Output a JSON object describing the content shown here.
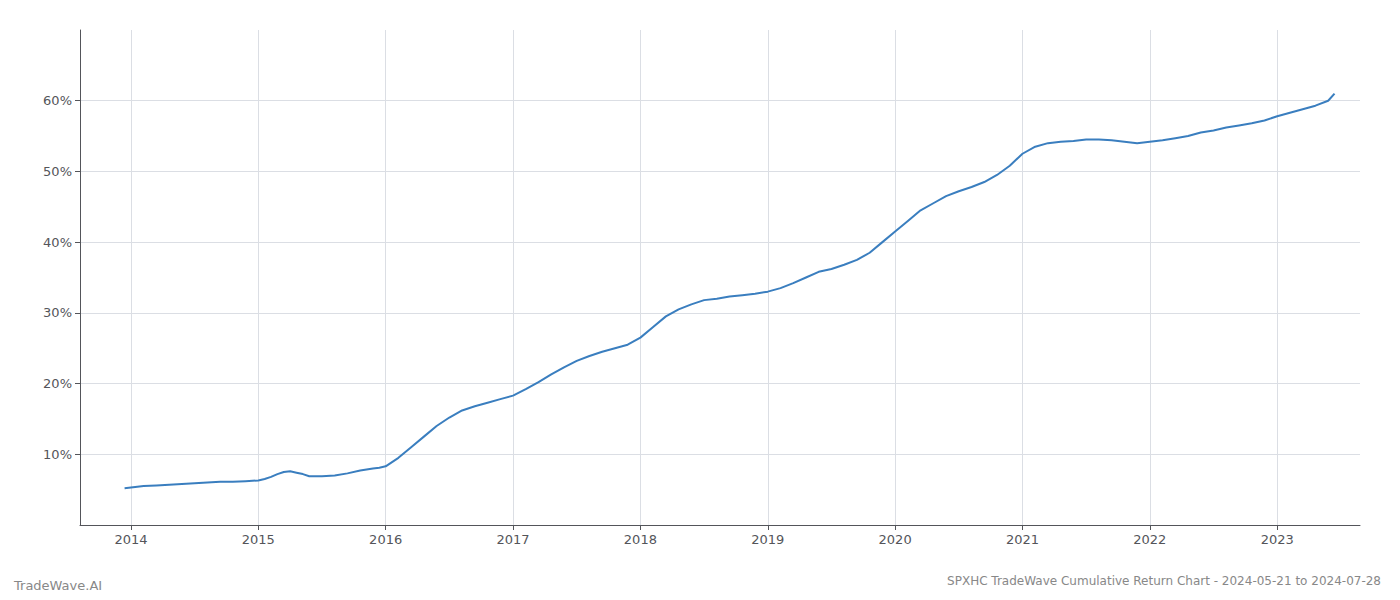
{
  "chart_data": {
    "type": "line",
    "title": "SPXHC TradeWave Cumulative Return Chart - 2024-05-21 to 2024-07-28",
    "annotations": [
      "TradeWave.AI"
    ],
    "color": "#3a7ebf",
    "grid": true,
    "x": [
      2013.95,
      2014.0,
      2014.1,
      2014.2,
      2014.3,
      2014.4,
      2014.5,
      2014.6,
      2014.7,
      2014.8,
      2014.9,
      2015.0,
      2015.05,
      2015.1,
      2015.15,
      2015.2,
      2015.25,
      2015.3,
      2015.35,
      2015.4,
      2015.5,
      2015.6,
      2015.7,
      2015.8,
      2015.9,
      2015.95,
      2016.0,
      2016.1,
      2016.2,
      2016.3,
      2016.4,
      2016.5,
      2016.6,
      2016.7,
      2016.8,
      2016.9,
      2017.0,
      2017.1,
      2017.2,
      2017.3,
      2017.4,
      2017.5,
      2017.6,
      2017.7,
      2017.8,
      2017.9,
      2018.0,
      2018.1,
      2018.2,
      2018.3,
      2018.4,
      2018.5,
      2018.6,
      2018.7,
      2018.8,
      2018.9,
      2019.0,
      2019.1,
      2019.2,
      2019.3,
      2019.4,
      2019.5,
      2019.6,
      2019.7,
      2019.8,
      2019.9,
      2020.0,
      2020.1,
      2020.2,
      2020.3,
      2020.4,
      2020.5,
      2020.6,
      2020.7,
      2020.8,
      2020.9,
      2021.0,
      2021.1,
      2021.2,
      2021.3,
      2021.4,
      2021.5,
      2021.6,
      2021.7,
      2021.8,
      2021.9,
      2022.0,
      2022.1,
      2022.2,
      2022.3,
      2022.4,
      2022.5,
      2022.6,
      2022.7,
      2022.8,
      2022.9,
      2023.0,
      2023.1,
      2023.2,
      2023.3,
      2023.4,
      2023.45
    ],
    "values": [
      5.2,
      5.3,
      5.5,
      5.6,
      5.7,
      5.8,
      5.9,
      6.0,
      6.1,
      6.1,
      6.2,
      6.3,
      6.5,
      6.8,
      7.2,
      7.5,
      7.6,
      7.4,
      7.2,
      6.9,
      6.9,
      7.0,
      7.3,
      7.7,
      8.0,
      8.1,
      8.3,
      9.5,
      11.0,
      12.5,
      14.0,
      15.2,
      16.2,
      16.8,
      17.3,
      17.8,
      18.3,
      19.2,
      20.2,
      21.3,
      22.3,
      23.2,
      23.9,
      24.5,
      25.0,
      25.5,
      26.5,
      28.0,
      29.5,
      30.5,
      31.2,
      31.8,
      32.0,
      32.3,
      32.5,
      32.7,
      33.0,
      33.5,
      34.2,
      35.0,
      35.8,
      36.2,
      36.8,
      37.5,
      38.5,
      40.0,
      41.5,
      43.0,
      44.5,
      45.5,
      46.5,
      47.2,
      47.8,
      48.5,
      49.5,
      50.8,
      52.5,
      53.5,
      54.0,
      54.2,
      54.3,
      54.5,
      54.5,
      54.4,
      54.2,
      54.0,
      54.2,
      54.4,
      54.7,
      55.0,
      55.5,
      55.8,
      56.2,
      56.5,
      56.8,
      57.2,
      57.8,
      58.3,
      58.8,
      59.3,
      60.0,
      61.0
    ],
    "xlim": [
      2013.6,
      2023.65
    ],
    "xticks": [
      2014,
      2015,
      2016,
      2017,
      2018,
      2019,
      2020,
      2021,
      2022,
      2023
    ],
    "ylim": [
      0,
      70
    ],
    "yticks": [
      {
        "value": 10,
        "label": "10%"
      },
      {
        "value": 20,
        "label": "20%"
      },
      {
        "value": 30,
        "label": "30%"
      },
      {
        "value": 40,
        "label": "40%"
      },
      {
        "value": 50,
        "label": "50%"
      },
      {
        "value": 60,
        "label": "60%"
      }
    ]
  }
}
